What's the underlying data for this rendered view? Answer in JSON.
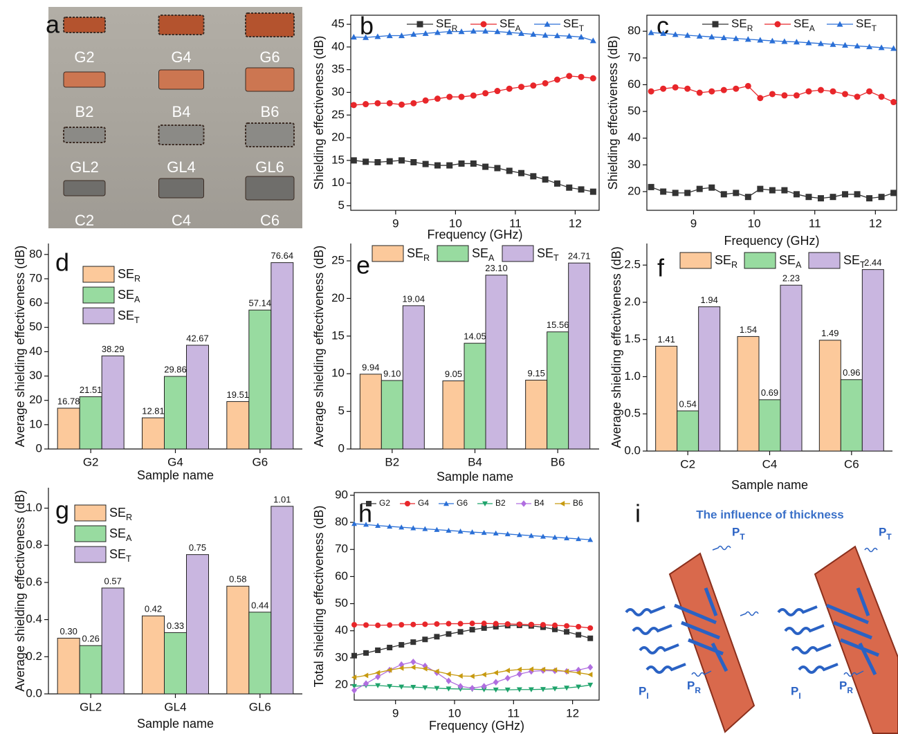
{
  "chart_data": [
    {
      "type": "image",
      "panel": "a",
      "labels": [
        "G2",
        "G4",
        "G6",
        "B2",
        "B4",
        "B6",
        "GL2",
        "GL4",
        "GL6",
        "C2",
        "C4",
        "C6"
      ]
    },
    {
      "type": "line",
      "panel": "b",
      "xlabel": "Frequency (GHz)",
      "ylabel": "Shielding effectiveness (dB)",
      "xlim": [
        8.25,
        12.4
      ],
      "xticks": [
        9,
        10,
        11,
        12
      ],
      "ylim": [
        4,
        47
      ],
      "yticks": [
        5,
        10,
        15,
        20,
        25,
        30,
        35,
        40,
        45
      ],
      "x": [
        8.3,
        8.5,
        8.7,
        8.9,
        9.1,
        9.3,
        9.5,
        9.7,
        9.9,
        10.1,
        10.3,
        10.5,
        10.7,
        10.9,
        11.1,
        11.3,
        11.5,
        11.7,
        11.9,
        12.1,
        12.3
      ],
      "series": [
        {
          "name": "SE_R",
          "color": "#333333",
          "marker": "square",
          "values": [
            15.0,
            14.7,
            14.6,
            14.8,
            15.0,
            14.6,
            14.2,
            13.9,
            13.9,
            14.3,
            14.3,
            13.6,
            13.3,
            12.7,
            12.2,
            11.5,
            10.8,
            9.9,
            9.0,
            8.6,
            8.1
          ]
        },
        {
          "name": "SE_A",
          "color": "#e8262a",
          "marker": "circle",
          "values": [
            27.2,
            27.4,
            27.6,
            27.6,
            27.3,
            27.6,
            28.2,
            28.6,
            29.0,
            29.0,
            29.3,
            29.8,
            30.3,
            30.8,
            31.2,
            31.5,
            32.0,
            32.8,
            33.6,
            33.4,
            33.1
          ]
        },
        {
          "name": "SE_T",
          "color": "#2a6fd6",
          "marker": "triangle",
          "values": [
            42.2,
            42.1,
            42.3,
            42.5,
            42.5,
            42.8,
            43.0,
            43.2,
            43.4,
            43.4,
            43.5,
            43.5,
            43.4,
            43.2,
            43.0,
            42.8,
            42.6,
            42.5,
            42.4,
            42.2,
            41.4
          ]
        }
      ]
    },
    {
      "type": "line",
      "panel": "c",
      "xlabel": "Frequency (GHz)",
      "ylabel": "Shielding effectiveness (dB)",
      "xlim": [
        8.23,
        12.35
      ],
      "xticks": [
        9,
        10,
        11,
        12
      ],
      "ylim": [
        13,
        86
      ],
      "yticks": [
        20,
        30,
        40,
        50,
        60,
        70,
        80
      ],
      "x": [
        8.3,
        8.5,
        8.7,
        8.9,
        9.1,
        9.3,
        9.5,
        9.7,
        9.9,
        10.1,
        10.3,
        10.5,
        10.7,
        10.9,
        11.1,
        11.3,
        11.5,
        11.7,
        11.9,
        12.1,
        12.3
      ],
      "series": [
        {
          "name": "SE_R",
          "color": "#333333",
          "marker": "square",
          "values": [
            21.7,
            20,
            19.5,
            19.5,
            21,
            21.5,
            19,
            19.5,
            18,
            21,
            20.5,
            20.5,
            19,
            18,
            17.5,
            18,
            19,
            19,
            17.5,
            18,
            19.5
          ]
        },
        {
          "name": "SE_A",
          "color": "#e8262a",
          "marker": "circle",
          "values": [
            57.5,
            58.5,
            59,
            58.5,
            57,
            57.5,
            58,
            58.5,
            59.5,
            55,
            56.5,
            56,
            56,
            57.5,
            58,
            57.5,
            56.5,
            55.5,
            57.5,
            55.5,
            53.5
          ]
        },
        {
          "name": "SE_T",
          "color": "#2a6fd6",
          "marker": "triangle",
          "values": [
            79.5,
            79.2,
            78.8,
            78.5,
            78.2,
            77.9,
            77.6,
            77.3,
            77,
            76.7,
            76.4,
            76.2,
            76,
            75.7,
            75.4,
            75.1,
            74.8,
            74.5,
            74.2,
            73.9,
            73.6
          ]
        }
      ]
    },
    {
      "type": "bar",
      "panel": "d",
      "xlabel": "Sample name",
      "ylabel": "Average shielding effectiveness (dB)",
      "categories": [
        "G2",
        "G4",
        "G6"
      ],
      "ylim": [
        0,
        84.5
      ],
      "yticks": [
        0,
        10,
        20,
        30,
        40,
        50,
        60,
        70,
        80
      ],
      "series": [
        {
          "name": "SE_R",
          "color": "#fcc99b",
          "values": [
            16.78,
            12.81,
            19.51
          ]
        },
        {
          "name": "SE_A",
          "color": "#98dba0",
          "values": [
            21.51,
            29.86,
            57.14
          ]
        },
        {
          "name": "SE_T",
          "color": "#c9b6e0",
          "values": [
            38.29,
            42.67,
            76.64
          ]
        }
      ]
    },
    {
      "type": "bar",
      "panel": "e",
      "xlabel": "Sample name",
      "ylabel": "Average shielding effectiveness (dB)",
      "categories": [
        "B2",
        "B4",
        "B6"
      ],
      "ylim": [
        0,
        27.3
      ],
      "yticks": [
        0,
        5,
        10,
        15,
        20,
        25
      ],
      "series": [
        {
          "name": "SE_R",
          "color": "#fcc99b",
          "values": [
            9.94,
            9.05,
            9.15
          ]
        },
        {
          "name": "SE_A",
          "color": "#98dba0",
          "values": [
            9.1,
            14.05,
            15.56
          ],
          "value_labels": [
            "9.10",
            "14.05",
            "15.56"
          ]
        },
        {
          "name": "SE_T",
          "color": "#c9b6e0",
          "values": [
            19.04,
            23.1,
            24.71
          ],
          "value_labels": [
            "19.04",
            "23.10",
            "24.71"
          ]
        }
      ]
    },
    {
      "type": "bar",
      "panel": "f",
      "xlabel": "Sample name",
      "ylabel": "Average shielding effectiveness (dB)",
      "categories": [
        "C2",
        "C4",
        "C6"
      ],
      "ylim": [
        0,
        2.79
      ],
      "yticks": [
        {
          "value": 0,
          "label": "0.0"
        },
        0.5,
        {
          "value": 1,
          "label": "1.0"
        },
        1.5,
        {
          "value": 2,
          "label": "2.0"
        },
        2.5
      ],
      "series": [
        {
          "name": "SE_R",
          "color": "#fcc99b",
          "values": [
            1.41,
            1.54,
            1.49
          ]
        },
        {
          "name": "SE_A",
          "color": "#98dba0",
          "values": [
            0.54,
            0.69,
            0.96
          ]
        },
        {
          "name": "SE_T",
          "color": "#c9b6e0",
          "values": [
            1.94,
            2.23,
            2.44
          ]
        }
      ]
    },
    {
      "type": "bar",
      "panel": "g",
      "xlabel": "Sample name",
      "ylabel": "Average shielding effectiveness (dB)",
      "categories": [
        "GL2",
        "GL4",
        "GL6"
      ],
      "ylim": [
        0,
        1.11
      ],
      "yticks": [
        {
          "value": 0,
          "label": "0.0"
        },
        0.2,
        0.4,
        0.6,
        0.8,
        {
          "value": 1,
          "label": "1.0"
        }
      ],
      "series": [
        {
          "name": "SE_R",
          "color": "#fcc99b",
          "values": [
            0.3,
            0.42,
            0.58
          ],
          "value_labels": [
            "0.30",
            "0.42",
            "0.58"
          ]
        },
        {
          "name": "SE_A",
          "color": "#98dba0",
          "values": [
            0.26,
            0.33,
            0.44
          ]
        },
        {
          "name": "SE_T",
          "color": "#c9b6e0",
          "values": [
            0.57,
            0.75,
            1.01
          ]
        }
      ]
    },
    {
      "type": "line",
      "panel": "h",
      "xlabel": "Frequency (GHz)",
      "ylabel": "Total shielding effectiveness (dB)",
      "xlim": [
        8.3,
        12.45
      ],
      "xticks": [
        9,
        10,
        11,
        12
      ],
      "ylim": [
        14.4,
        91
      ],
      "yticks": [
        20,
        30,
        40,
        50,
        60,
        70,
        80,
        90
      ],
      "x": [
        8.3,
        8.5,
        8.7,
        8.9,
        9.1,
        9.3,
        9.5,
        9.7,
        9.9,
        10.1,
        10.3,
        10.5,
        10.7,
        10.9,
        11.1,
        11.3,
        11.5,
        11.7,
        11.9,
        12.1,
        12.3
      ],
      "series": [
        {
          "name": "G2",
          "color": "#333333",
          "marker": "square",
          "values": [
            30.8,
            31.8,
            32.8,
            33.8,
            34.8,
            35.8,
            36.8,
            37.8,
            38.8,
            39.6,
            40.4,
            41.0,
            41.5,
            41.9,
            42.0,
            41.8,
            41.3,
            40.5,
            39.6,
            38.5,
            37.2
          ]
        },
        {
          "name": "G4",
          "color": "#e8262a",
          "marker": "circle",
          "values": [
            42.2,
            42.1,
            42.0,
            42.1,
            42.2,
            42.3,
            42.4,
            42.5,
            42.6,
            42.6,
            42.7,
            42.7,
            42.6,
            42.5,
            42.4,
            42.3,
            42.2,
            42.0,
            41.8,
            41.5,
            41.0
          ]
        },
        {
          "name": "G6",
          "color": "#2a6fd6",
          "marker": "triangle",
          "values": [
            79.5,
            79.2,
            78.8,
            78.5,
            78.2,
            77.9,
            77.6,
            77.3,
            77,
            76.7,
            76.4,
            76.2,
            76,
            75.7,
            75.4,
            75.1,
            74.8,
            74.5,
            74.2,
            73.9,
            73.6
          ]
        },
        {
          "name": "B2",
          "color": "#1ea36b",
          "marker": "down",
          "values": [
            19.5,
            19.8,
            19.8,
            19.5,
            19.3,
            19.2,
            19.0,
            18.8,
            18.6,
            18.5,
            18.4,
            18.3,
            18.2,
            18.2,
            18.3,
            18.3,
            18.4,
            18.6,
            18.9,
            19.3,
            20
          ]
        },
        {
          "name": "B4",
          "color": "#b06ee0",
          "marker": "diamond",
          "values": [
            18,
            20.5,
            23,
            25.5,
            27.5,
            28.5,
            27,
            24.5,
            21.5,
            19.5,
            18.8,
            19.5,
            21,
            22.5,
            24,
            25,
            25.3,
            25.2,
            25,
            25.5,
            26.5
          ]
        },
        {
          "name": "B6",
          "color": "#c79a10",
          "marker": "left",
          "values": [
            22.8,
            23.5,
            24.5,
            25.5,
            26.2,
            26.5,
            26,
            25,
            24,
            23.3,
            23.2,
            23.8,
            24.5,
            25.3,
            25.7,
            25.8,
            25.7,
            25.5,
            25,
            24.5,
            23.8
          ]
        }
      ]
    },
    {
      "type": "diagram",
      "panel": "i",
      "title": "The influence of thickness",
      "labels": [
        "P_T",
        "P_I",
        "P_R",
        "P_T",
        "P_I",
        "P_R"
      ]
    }
  ]
}
